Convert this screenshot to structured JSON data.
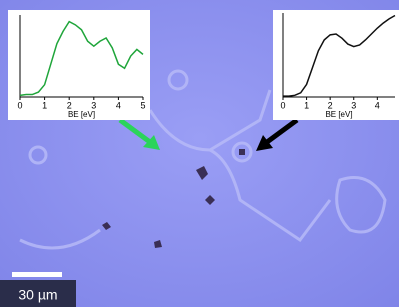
{
  "chart_data": [
    {
      "type": "line",
      "xlabel": "BE [eV]",
      "x": [
        0,
        0.25,
        0.5,
        0.75,
        1,
        1.25,
        1.5,
        1.75,
        2,
        2.25,
        2.5,
        2.75,
        3,
        3.25,
        3.5,
        3.75,
        4,
        4.25,
        4.5,
        4.75,
        5
      ],
      "values": [
        0.02,
        0.03,
        0.03,
        0.06,
        0.15,
        0.4,
        0.65,
        0.8,
        0.92,
        0.88,
        0.82,
        0.68,
        0.62,
        0.68,
        0.72,
        0.6,
        0.4,
        0.35,
        0.5,
        0.58,
        0.52
      ],
      "color": "#1fa53a",
      "xlim": [
        0,
        5
      ],
      "xticks": [
        0,
        1,
        2,
        3,
        4,
        5
      ],
      "ylim": [
        0,
        1
      ]
    },
    {
      "type": "line",
      "xlabel": "BE [eV]",
      "x": [
        0,
        0.25,
        0.5,
        0.75,
        1,
        1.25,
        1.5,
        1.75,
        2,
        2.25,
        2.5,
        2.75,
        3,
        3.25,
        3.5,
        3.75,
        4,
        4.25,
        4.5,
        4.75
      ],
      "values": [
        0.01,
        0.01,
        0.02,
        0.05,
        0.15,
        0.35,
        0.55,
        0.68,
        0.74,
        0.75,
        0.7,
        0.63,
        0.6,
        0.62,
        0.68,
        0.75,
        0.82,
        0.88,
        0.93,
        0.97
      ],
      "color": "#111111",
      "xlim": [
        0,
        4.75
      ],
      "xticks": [
        0,
        1,
        2,
        3,
        4
      ],
      "ylim": [
        0,
        1
      ]
    }
  ],
  "scale_bar": {
    "label": "30 µm"
  }
}
